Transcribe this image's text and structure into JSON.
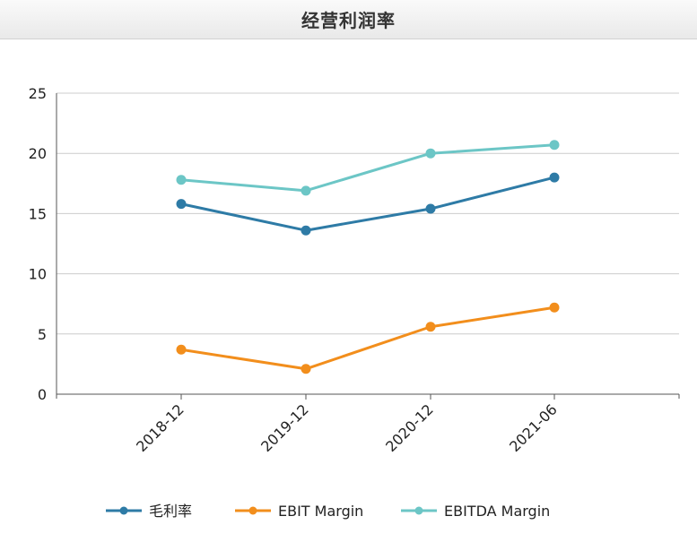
{
  "header": {
    "title": "经营利润率"
  },
  "colors": {
    "s0": "#2E7BA6",
    "s1": "#F28E1C",
    "s2": "#6CC6C6",
    "grid": "#cccccc",
    "axis": "#555555"
  },
  "chart_data": {
    "type": "line",
    "title": "经营利润率",
    "categories": [
      "2018-12",
      "2019-12",
      "2020-12",
      "2021-06"
    ],
    "series": [
      {
        "name": "毛利率",
        "values": [
          15.8,
          13.6,
          15.4,
          18.0
        ]
      },
      {
        "name": "EBIT Margin",
        "values": [
          3.7,
          2.1,
          5.6,
          7.2
        ]
      },
      {
        "name": "EBITDA Margin",
        "values": [
          17.8,
          16.9,
          20.0,
          20.7
        ]
      }
    ],
    "ylim": [
      0,
      25
    ],
    "yticks": [
      "0",
      "5",
      "10",
      "15",
      "20",
      "25"
    ],
    "grid": true,
    "legend_position": "bottom"
  }
}
